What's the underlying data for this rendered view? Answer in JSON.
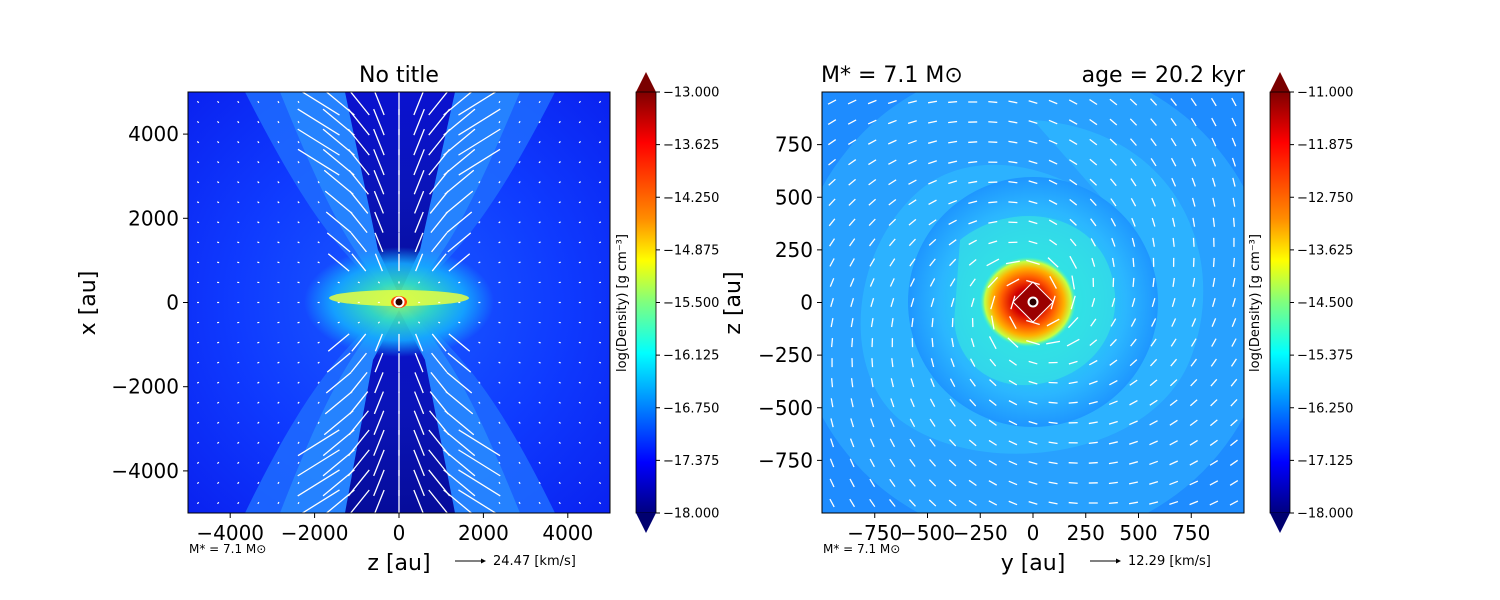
{
  "figure": {
    "left_panel": {
      "title": "No title",
      "xlabel": "z [au]",
      "ylabel": "x [au]",
      "footer_mass": "M$_*$ = 7.1 M$_\\odot$",
      "footer_mass_text": "M* = 7.1 M⊙",
      "velocity_key": "24.47 [km/s]"
    },
    "right_panel": {
      "title_left": "M* = 7.1 M⊙",
      "title_right": "age = 20.2 kyr",
      "xlabel": "y [au]",
      "ylabel": "z [au]",
      "footer_mass_text": "M* = 7.1 M⊙",
      "velocity_key": "12.29 [km/s]"
    },
    "colorbar_label": "log(Density) [g cm⁻³]"
  },
  "colors": {
    "background": "#ffffff",
    "arrow": "#ffffff",
    "colormap": "jet"
  },
  "chart_data": [
    {
      "type": "heatmap",
      "title": "No title",
      "xlabel": "z [au]",
      "ylabel": "x [au]",
      "xlim": [
        -5000,
        5000
      ],
      "ylim": [
        -5000,
        5000
      ],
      "xticks": [
        -4000,
        -2000,
        0,
        2000,
        4000
      ],
      "yticks": [
        -4000,
        -2000,
        0,
        2000,
        4000
      ],
      "xtick_labels": [
        "−4000",
        "−2000",
        "0",
        "2000",
        "4000"
      ],
      "ytick_labels": [
        "−4000",
        "−2000",
        "0",
        "2000",
        "4000"
      ],
      "colorbar": {
        "label": "log(Density) [g cm⁻³]",
        "range": [
          -18.0,
          -13.0
        ],
        "ticks": [
          "-13.000",
          "-13.625",
          "-14.250",
          "-14.875",
          "-15.500",
          "-16.125",
          "-16.750",
          "-17.375",
          "-18.000"
        ],
        "tick_labels": [
          "−13.000",
          "−13.625",
          "−14.250",
          "−14.875",
          "−15.500",
          "−16.125",
          "−16.750",
          "−17.375",
          "−18.000"
        ]
      },
      "velocity_reference": "24.47 [km/s]",
      "features": "bipolar outflow cavities along z; dense flattened disk along x=0 plane; central star at origin"
    },
    {
      "type": "heatmap",
      "title": "M* = 7.1 M⊙   age = 20.2 kyr",
      "xlabel": "y [au]",
      "ylabel": "z [au]",
      "xlim": [
        -1000,
        1000
      ],
      "ylim": [
        -1000,
        1000
      ],
      "xticks": [
        -750,
        -500,
        -250,
        0,
        250,
        500,
        750
      ],
      "yticks": [
        -750,
        -500,
        -250,
        0,
        250,
        500,
        750
      ],
      "xtick_labels": [
        "−750",
        "−500",
        "−250",
        "0",
        "250",
        "500",
        "750"
      ],
      "ytick_labels": [
        "−750",
        "−500",
        "−250",
        "0",
        "250",
        "500",
        "750"
      ],
      "colorbar": {
        "label": "log(Density) [g cm⁻³]",
        "range": [
          -18.0,
          -11.0
        ],
        "ticks": [
          "-11.000",
          "-11.875",
          "-12.750",
          "-13.625",
          "-14.500",
          "-15.375",
          "-16.250",
          "-17.125",
          "-18.000"
        ],
        "tick_labels": [
          "−11.000",
          "−11.875",
          "−12.750",
          "−13.625",
          "−14.500",
          "−15.375",
          "−16.250",
          "−17.125",
          "−18.000"
        ]
      },
      "velocity_reference": "12.29 [km/s]",
      "features": "face-on disk with spiral structure; dense core near origin; rotating velocity field"
    }
  ]
}
